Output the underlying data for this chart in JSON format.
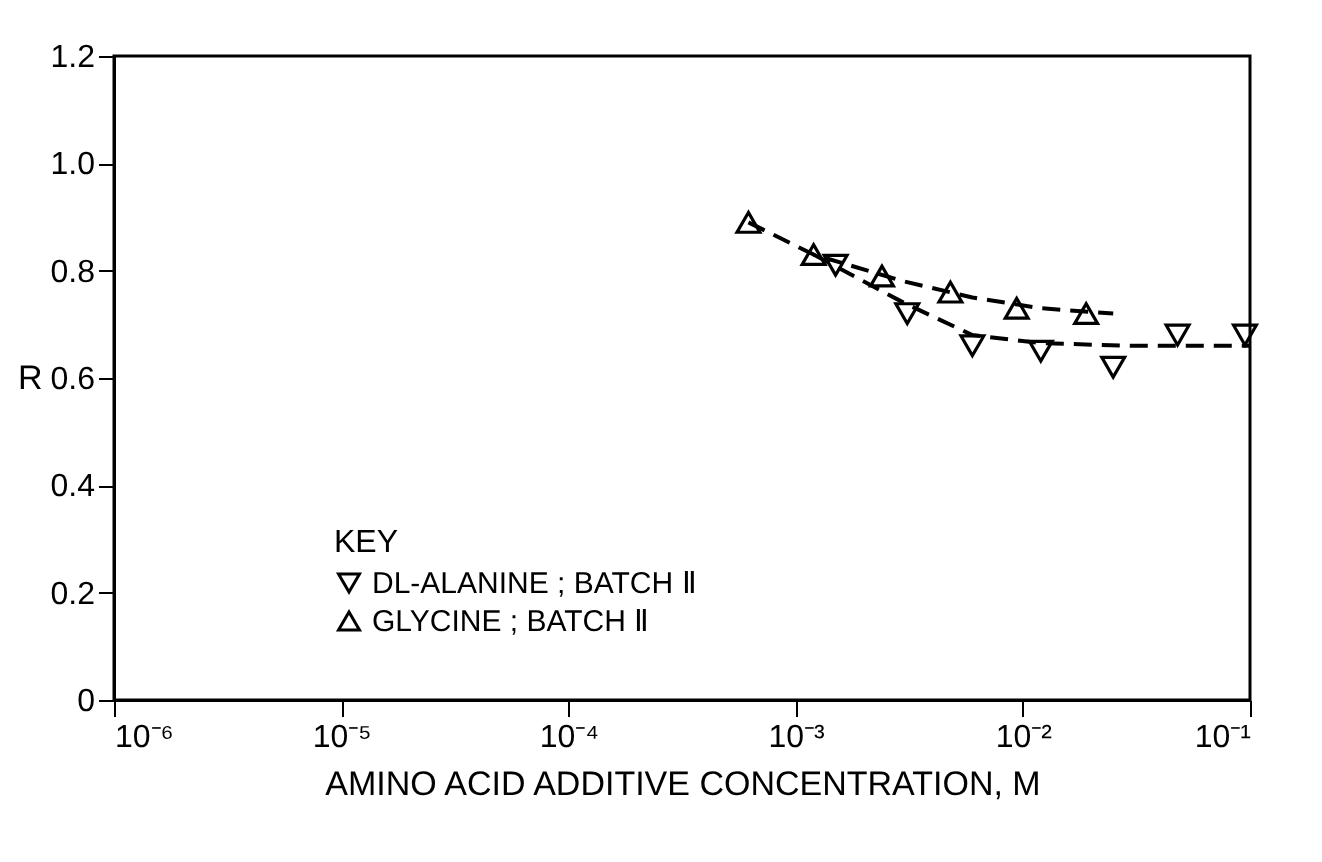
{
  "chart_data": {
    "type": "scatter",
    "xlabel": "AMINO ACID ADDITIVE CONCENTRATION, M",
    "ylabel": "R",
    "legend_title": "KEY",
    "legend": "bottom left",
    "log": "x",
    "xlim": [
      1e-06,
      0.1
    ],
    "xticks": [
      {
        "value": 1e-06,
        "label": "10⁻⁶"
      },
      {
        "value": 1e-05,
        "label": "10⁻⁵"
      },
      {
        "value": 0.0001,
        "label": "10⁻⁴"
      },
      {
        "value": 0.001,
        "label": "10⁻³"
      },
      {
        "value": 0.01,
        "label": "10⁻²"
      },
      {
        "value": 0.1,
        "label": "10⁻¹"
      }
    ],
    "ylim": [
      0,
      1.2
    ],
    "yticks": [
      0,
      0.2,
      0.4,
      0.6,
      0.8,
      {
        "value": 1,
        "label": "1.0"
      },
      1.2
    ],
    "grid": false,
    "series": [
      {
        "name": "DL-ALANINE ; BATCH Ⅱ",
        "color": "#000000",
        "marker": "triangle-down",
        "x": [
          0.0015,
          0.0031,
          0.006,
          0.012,
          0.025,
          0.048,
          0.095
        ],
        "values": [
          0.81,
          0.72,
          0.66,
          0.65,
          0.62,
          0.68,
          0.68
        ]
      },
      {
        "name": "GLYCINE ; BATCH Ⅱ",
        "color": "#000000",
        "marker": "triangle-up",
        "x": [
          0.00062,
          0.0012,
          0.0024,
          0.0048,
          0.0094,
          0.019
        ],
        "values": [
          0.89,
          0.83,
          0.79,
          0.76,
          0.73,
          0.72
        ]
      },
      {
        "type": "line",
        "line_style": "dashed",
        "color": "#000000",
        "x": [
          0.0012,
          0.003,
          0.006,
          0.012,
          0.03,
          0.1
        ],
        "values": [
          0.83,
          0.74,
          0.68,
          0.665,
          0.66,
          0.66
        ]
      },
      {
        "type": "line",
        "line_style": "dashed",
        "color": "#000000",
        "x": [
          0.00062,
          0.0012,
          0.003,
          0.006,
          0.012,
          0.025
        ],
        "values": [
          0.89,
          0.83,
          0.78,
          0.75,
          0.73,
          0.72
        ]
      }
    ]
  }
}
